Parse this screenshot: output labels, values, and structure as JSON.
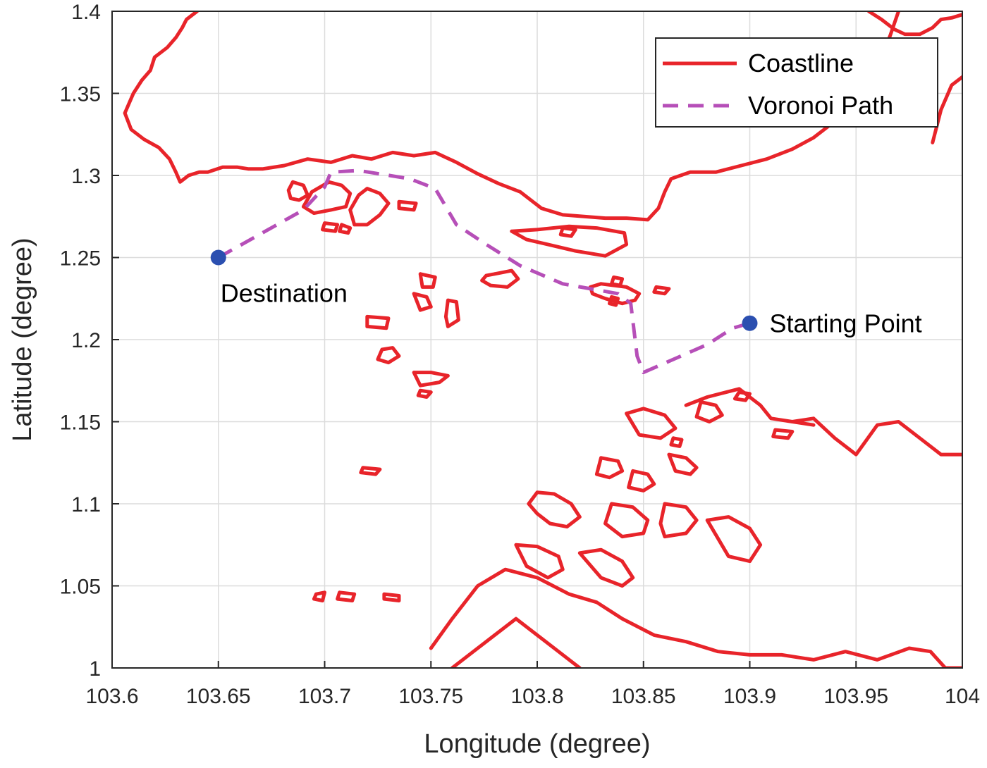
{
  "chart_data": {
    "type": "line",
    "title": "",
    "xlabel": "Longitude (degree)",
    "ylabel": "Latitude (degree)",
    "xlim": [
      103.6,
      104
    ],
    "ylim": [
      1,
      1.4
    ],
    "xticks": [
      103.6,
      103.65,
      103.7,
      103.75,
      103.8,
      103.85,
      103.9,
      103.95,
      104
    ],
    "xtick_labels": [
      "103.6",
      "103.65",
      "103.7",
      "103.75",
      "103.8",
      "103.85",
      "103.9",
      "103.95",
      "104"
    ],
    "yticks": [
      1,
      1.05,
      1.1,
      1.15,
      1.2,
      1.25,
      1.3,
      1.35,
      1.4
    ],
    "ytick_labels": [
      "1",
      "1.05",
      "1.1",
      "1.15",
      "1.2",
      "1.25",
      "1.3",
      "1.35",
      "1.4"
    ],
    "grid": true,
    "legend": {
      "location": "top-right",
      "entries": [
        {
          "label": "Coastline",
          "color": "#e8242a",
          "style": "solid"
        },
        {
          "label": "Voronoi Path",
          "color": "#b64fb8",
          "style": "dashed"
        }
      ]
    },
    "series": [
      {
        "name": "Voronoi Path",
        "color": "#b64fb8",
        "style": "dashed",
        "x": [
          103.65,
          103.69,
          103.7,
          103.703,
          103.716,
          103.74,
          103.752,
          103.762,
          103.776,
          103.792,
          103.812,
          103.838,
          103.844,
          103.847,
          103.85,
          103.88,
          103.892,
          103.9
        ],
        "y": [
          1.25,
          1.279,
          1.293,
          1.302,
          1.303,
          1.298,
          1.292,
          1.27,
          1.258,
          1.245,
          1.234,
          1.228,
          1.222,
          1.19,
          1.18,
          1.197,
          1.207,
          1.21
        ]
      }
    ],
    "coastline": {
      "name": "Coastline",
      "color": "#e8242a",
      "polylines": [
        {
          "x": [
            103.614,
            103.61,
            103.606,
            103.609,
            103.615,
            103.622,
            103.627,
            103.63,
            103.632,
            103.636,
            103.641,
            103.645,
            103.652,
            103.659,
            103.664,
            103.671,
            103.681,
            103.692,
            103.703,
            103.713,
            103.722,
            103.732,
            103.742,
            103.752,
            103.762,
            103.772,
            103.782,
            103.792,
            103.802,
            103.812,
            103.822,
            103.832,
            103.842,
            103.852,
            103.857,
            103.86,
            103.863,
            103.872,
            103.884,
            103.896,
            103.908,
            103.92,
            103.93,
            103.938,
            103.944,
            103.95,
            103.956,
            103.961,
            103.966,
            103.97
          ],
          "y": [
            1.358,
            1.35,
            1.338,
            1.328,
            1.322,
            1.317,
            1.31,
            1.302,
            1.296,
            1.3,
            1.302,
            1.302,
            1.305,
            1.305,
            1.304,
            1.304,
            1.306,
            1.31,
            1.308,
            1.312,
            1.31,
            1.314,
            1.312,
            1.314,
            1.308,
            1.301,
            1.295,
            1.29,
            1.28,
            1.276,
            1.275,
            1.274,
            1.274,
            1.273,
            1.28,
            1.29,
            1.298,
            1.302,
            1.302,
            1.306,
            1.31,
            1.316,
            1.323,
            1.331,
            1.338,
            1.348,
            1.358,
            1.37,
            1.385,
            1.4
          ]
        },
        {
          "x": [
            103.614,
            103.618,
            103.62,
            103.626,
            103.63,
            103.633,
            103.635,
            103.64
          ],
          "y": [
            1.358,
            1.364,
            1.372,
            1.378,
            1.384,
            1.39,
            1.395,
            1.4
          ]
        },
        {
          "x": [
            103.956,
            103.962,
            103.968,
            103.973,
            103.98,
            103.986,
            103.99,
            103.995,
            104.0
          ],
          "y": [
            1.4,
            1.395,
            1.389,
            1.386,
            1.386,
            1.39,
            1.395,
            1.396,
            1.398
          ]
        },
        {
          "x": [
            103.986,
            103.99,
            103.995,
            104.0
          ],
          "y": [
            1.32,
            1.34,
            1.355,
            1.36
          ]
        },
        {
          "x": [
            103.788,
            103.8,
            103.815,
            103.828,
            103.841,
            103.842,
            103.832,
            103.818,
            103.805,
            103.795,
            103.788
          ],
          "y": [
            1.266,
            1.267,
            1.269,
            1.268,
            1.265,
            1.258,
            1.251,
            1.254,
            1.258,
            1.261,
            1.266
          ]
        },
        {
          "x": [
            103.702,
            103.708,
            103.712,
            103.71,
            103.703,
            103.695,
            103.69,
            103.694,
            103.702
          ],
          "y": [
            1.296,
            1.294,
            1.289,
            1.281,
            1.279,
            1.277,
            1.281,
            1.29,
            1.296
          ]
        },
        {
          "x": [
            103.72,
            103.726,
            103.73,
            103.726,
            103.72,
            103.714,
            103.712,
            103.716,
            103.72
          ],
          "y": [
            1.292,
            1.289,
            1.283,
            1.276,
            1.27,
            1.27,
            1.279,
            1.288,
            1.292
          ]
        },
        {
          "x": [
            103.685,
            103.69,
            103.692,
            103.688,
            103.684,
            103.683,
            103.685
          ],
          "y": [
            1.296,
            1.294,
            1.288,
            1.285,
            1.286,
            1.291,
            1.296
          ]
        },
        {
          "x": [
            103.735,
            103.743,
            103.742,
            103.735,
            103.735
          ],
          "y": [
            1.284,
            1.283,
            1.279,
            1.28,
            1.284
          ]
        },
        {
          "x": [
            103.7,
            103.706,
            103.705,
            103.699,
            103.7
          ],
          "y": [
            1.271,
            1.27,
            1.266,
            1.267,
            1.271
          ]
        },
        {
          "x": [
            103.708,
            103.712,
            103.711,
            103.707,
            103.708
          ],
          "y": [
            1.27,
            1.268,
            1.265,
            1.266,
            1.27
          ]
        },
        {
          "x": [
            103.745,
            103.752,
            103.751,
            103.746,
            103.745
          ],
          "y": [
            1.24,
            1.238,
            1.232,
            1.232,
            1.24
          ]
        },
        {
          "x": [
            103.78,
            103.788,
            103.791,
            103.786,
            103.778,
            103.774,
            103.776,
            103.78
          ],
          "y": [
            1.24,
            1.242,
            1.237,
            1.232,
            1.233,
            1.236,
            1.239,
            1.24
          ]
        },
        {
          "x": [
            103.742,
            103.748,
            103.75,
            103.745,
            103.742
          ],
          "y": [
            1.228,
            1.226,
            1.22,
            1.218,
            1.228
          ]
        },
        {
          "x": [
            103.758,
            103.762,
            103.763,
            103.758,
            103.757,
            103.758
          ],
          "y": [
            1.224,
            1.223,
            1.212,
            1.208,
            1.214,
            1.224
          ]
        },
        {
          "x": [
            103.72,
            103.73,
            103.729,
            103.72,
            103.72
          ],
          "y": [
            1.214,
            1.213,
            1.207,
            1.208,
            1.214
          ]
        },
        {
          "x": [
            103.727,
            103.732,
            103.735,
            103.73,
            103.725,
            103.727
          ],
          "y": [
            1.194,
            1.195,
            1.19,
            1.186,
            1.188,
            1.194
          ]
        },
        {
          "x": [
            103.742,
            103.75,
            103.758,
            103.754,
            103.745,
            103.742
          ],
          "y": [
            1.18,
            1.18,
            1.178,
            1.174,
            1.172,
            1.18
          ]
        },
        {
          "x": [
            103.745,
            103.75,
            103.748,
            103.744,
            103.745
          ],
          "y": [
            1.169,
            1.168,
            1.165,
            1.166,
            1.169
          ]
        },
        {
          "x": [
            103.718,
            103.726,
            103.724,
            103.717,
            103.718
          ],
          "y": [
            1.122,
            1.121,
            1.118,
            1.119,
            1.122
          ]
        },
        {
          "x": [
            103.696,
            103.7,
            103.699,
            103.695,
            103.696
          ],
          "y": [
            1.045,
            1.046,
            1.041,
            1.042,
            1.045
          ]
        },
        {
          "x": [
            103.707,
            103.714,
            103.713,
            103.706,
            103.707
          ],
          "y": [
            1.046,
            1.045,
            1.041,
            1.042,
            1.046
          ]
        },
        {
          "x": [
            103.728,
            103.735,
            103.735,
            103.728,
            103.728
          ],
          "y": [
            1.045,
            1.044,
            1.041,
            1.042,
            1.045
          ]
        },
        {
          "x": [
            103.8,
            103.808,
            103.816,
            103.82,
            103.814,
            103.806,
            103.8,
            103.796,
            103.8
          ],
          "y": [
            1.107,
            1.106,
            1.1,
            1.092,
            1.086,
            1.088,
            1.094,
            1.1,
            1.107
          ]
        },
        {
          "x": [
            103.75,
            103.76,
            103.772,
            103.785,
            103.8,
            103.815,
            103.828,
            103.84,
            103.855,
            103.87,
            103.885,
            103.9,
            103.915,
            103.93,
            103.945,
            103.96,
            103.975,
            103.985,
            103.992,
            104.0
          ],
          "y": [
            1.012,
            1.03,
            1.05,
            1.06,
            1.055,
            1.045,
            1.04,
            1.03,
            1.02,
            1.016,
            1.01,
            1.008,
            1.008,
            1.005,
            1.01,
            1.005,
            1.012,
            1.01,
            1.0,
            1.0
          ]
        },
        {
          "x": [
            103.76,
            103.77,
            103.78,
            103.79,
            103.8,
            103.81,
            103.82
          ],
          "y": [
            1.0,
            1.01,
            1.02,
            1.03,
            1.02,
            1.01,
            1.0
          ]
        },
        {
          "x": [
            103.92,
            103.93,
            103.94,
            103.95,
            103.96,
            103.97,
            103.98,
            103.99,
            104.0
          ],
          "y": [
            1.15,
            1.152,
            1.14,
            1.13,
            1.148,
            1.15,
            1.14,
            1.13,
            1.13
          ]
        },
        {
          "x": [
            103.87,
            103.88,
            103.895,
            103.905,
            103.91,
            103.92,
            103.93
          ],
          "y": [
            1.16,
            1.165,
            1.17,
            1.16,
            1.152,
            1.15,
            1.148
          ]
        },
        {
          "x": [
            103.862,
            103.87,
            103.875,
            103.872,
            103.865,
            103.862
          ],
          "y": [
            1.13,
            1.128,
            1.122,
            1.118,
            1.12,
            1.13
          ]
        },
        {
          "x": [
            103.83,
            103.838,
            103.84,
            103.834,
            103.828,
            103.83
          ],
          "y": [
            1.128,
            1.126,
            1.12,
            1.116,
            1.118,
            1.128
          ]
        },
        {
          "x": [
            103.845,
            103.852,
            103.855,
            103.85,
            103.843,
            103.845
          ],
          "y": [
            1.12,
            1.118,
            1.112,
            1.108,
            1.11,
            1.12
          ]
        },
        {
          "x": [
            103.835,
            103.845,
            103.852,
            103.85,
            103.84,
            103.832,
            103.835
          ],
          "y": [
            1.1,
            1.098,
            1.09,
            1.082,
            1.08,
            1.088,
            1.1
          ]
        },
        {
          "x": [
            103.86,
            103.87,
            103.875,
            103.87,
            103.86,
            103.858,
            103.86
          ],
          "y": [
            1.1,
            1.098,
            1.09,
            1.082,
            1.08,
            1.088,
            1.1
          ]
        },
        {
          "x": [
            103.88,
            103.89,
            103.9,
            103.905,
            103.9,
            103.89,
            103.88
          ],
          "y": [
            1.09,
            1.092,
            1.085,
            1.075,
            1.065,
            1.068,
            1.09
          ]
        },
        {
          "x": [
            103.82,
            103.83,
            103.84,
            103.845,
            103.84,
            103.83,
            103.82
          ],
          "y": [
            1.07,
            1.072,
            1.065,
            1.055,
            1.05,
            1.055,
            1.07
          ]
        },
        {
          "x": [
            103.79,
            103.8,
            103.81,
            103.812,
            103.805,
            103.795,
            103.79
          ],
          "y": [
            1.075,
            1.074,
            1.068,
            1.06,
            1.055,
            1.062,
            1.075
          ]
        },
        {
          "x": [
            103.842,
            103.85,
            103.86,
            103.865,
            103.858,
            103.848,
            103.842
          ],
          "y": [
            1.155,
            1.158,
            1.154,
            1.146,
            1.14,
            1.142,
            1.155
          ]
        },
        {
          "x": [
            103.877,
            103.884,
            103.887,
            103.881,
            103.875,
            103.877
          ],
          "y": [
            1.162,
            1.16,
            1.154,
            1.15,
            1.153,
            1.162
          ]
        },
        {
          "x": [
            103.895,
            103.9,
            103.898,
            103.893,
            103.895
          ],
          "y": [
            1.168,
            1.167,
            1.163,
            1.164,
            1.168
          ]
        },
        {
          "x": [
            103.912,
            103.92,
            103.918,
            103.911,
            103.912
          ],
          "y": [
            1.145,
            1.144,
            1.14,
            1.141,
            1.145
          ]
        },
        {
          "x": [
            103.864,
            103.868,
            103.867,
            103.863,
            103.864
          ],
          "y": [
            1.14,
            1.139,
            1.135,
            1.136,
            1.14
          ]
        },
        {
          "x": [
            103.83,
            103.842,
            103.848,
            103.846,
            103.84,
            103.832,
            103.826,
            103.825,
            103.83
          ],
          "y": [
            1.234,
            1.232,
            1.228,
            1.224,
            1.222,
            1.225,
            1.228,
            1.232,
            1.234
          ]
        },
        {
          "x": [
            103.836,
            103.84,
            103.839,
            103.835,
            103.836
          ],
          "y": [
            1.238,
            1.237,
            1.233,
            1.234,
            1.238
          ]
        },
        {
          "x": [
            103.856,
            103.862,
            103.86,
            103.855,
            103.856
          ],
          "y": [
            1.232,
            1.231,
            1.228,
            1.229,
            1.232
          ]
        },
        {
          "x": [
            103.835,
            103.838,
            103.837,
            103.834,
            103.835
          ],
          "y": [
            1.226,
            1.225,
            1.221,
            1.222,
            1.226
          ]
        },
        {
          "x": [
            103.812,
            103.818,
            103.816,
            103.811,
            103.812
          ],
          "y": [
            1.268,
            1.267,
            1.263,
            1.264,
            1.268
          ]
        }
      ]
    },
    "points": [
      {
        "name": "Destination",
        "x": 103.65,
        "y": 1.25,
        "color": "#2b4fb0"
      },
      {
        "name": "Starting Point",
        "x": 103.9,
        "y": 1.21,
        "color": "#2b4fb0"
      }
    ]
  }
}
